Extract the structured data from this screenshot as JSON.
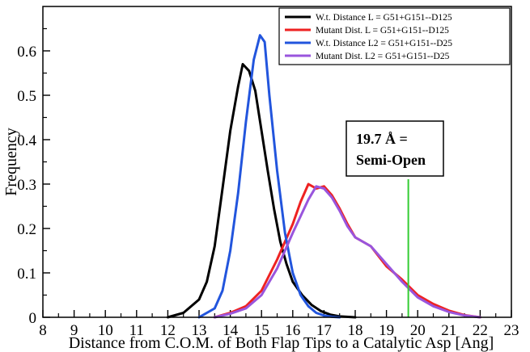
{
  "chart_data": {
    "type": "line",
    "title": "",
    "xlabel": "Distance from C.O.M. of Both Flap Tips to a Catalytic Asp [Ang]",
    "ylabel": "Frequency",
    "xlim": [
      8,
      23
    ],
    "ylim": [
      0,
      0.7
    ],
    "x_ticks": [
      8,
      9,
      10,
      11,
      12,
      13,
      14,
      15,
      16,
      17,
      18,
      19,
      20,
      21,
      22,
      23
    ],
    "y_ticks": [
      0,
      0.1,
      0.2,
      0.3,
      0.4,
      0.5,
      0.6
    ],
    "x_tick_labels": [
      "8",
      "9",
      "10",
      "11",
      "12",
      "13",
      "14",
      "15",
      "16",
      "17",
      "18",
      "19",
      "20",
      "21",
      "22",
      "23"
    ],
    "y_tick_labels": [
      "0",
      "0.1",
      "0.2",
      "0.3",
      "0.4",
      "0.5",
      "0.6"
    ],
    "grid": false,
    "legend_position": "top-right",
    "series": [
      {
        "name": "W.t. Distance L = G51+G151--D125",
        "color": "#000000",
        "x": [
          12.0,
          12.5,
          13.0,
          13.25,
          13.5,
          13.75,
          14.0,
          14.25,
          14.4,
          14.6,
          14.8,
          15.0,
          15.2,
          15.4,
          15.6,
          15.8,
          16.0,
          16.3,
          16.6,
          16.9,
          17.2,
          17.5,
          18.0
        ],
        "y": [
          0.0,
          0.01,
          0.04,
          0.08,
          0.16,
          0.29,
          0.42,
          0.52,
          0.57,
          0.555,
          0.51,
          0.42,
          0.33,
          0.245,
          0.17,
          0.12,
          0.08,
          0.05,
          0.028,
          0.014,
          0.006,
          0.002,
          0.0
        ]
      },
      {
        "name": "Mutant Dist. L = G51+G151--D125",
        "color": "#ee2222",
        "x": [
          13.5,
          14.0,
          14.5,
          15.0,
          15.5,
          16.0,
          16.25,
          16.5,
          16.75,
          17.0,
          17.25,
          17.5,
          17.75,
          18.0,
          18.5,
          19.0,
          19.5,
          20.0,
          20.5,
          21.0,
          21.5,
          22.0
        ],
        "y": [
          0.0,
          0.01,
          0.025,
          0.06,
          0.13,
          0.21,
          0.26,
          0.3,
          0.29,
          0.295,
          0.275,
          0.245,
          0.21,
          0.18,
          0.16,
          0.115,
          0.085,
          0.05,
          0.03,
          0.015,
          0.005,
          0.0
        ]
      },
      {
        "name": "W.t. Distance L2 = G51+G151--D25",
        "color": "#2255dd",
        "x": [
          13.0,
          13.5,
          13.75,
          14.0,
          14.25,
          14.5,
          14.75,
          14.95,
          15.1,
          15.25,
          15.5,
          15.75,
          16.0,
          16.25,
          16.5,
          16.75,
          17.0,
          17.25,
          17.5
        ],
        "y": [
          0.0,
          0.02,
          0.06,
          0.15,
          0.28,
          0.44,
          0.58,
          0.635,
          0.62,
          0.5,
          0.33,
          0.19,
          0.1,
          0.05,
          0.025,
          0.01,
          0.004,
          0.001,
          0.0
        ]
      },
      {
        "name": "Mutant Dist. L2 = G51+G151--D25",
        "color": "#9955dd",
        "x": [
          13.5,
          14.0,
          14.5,
          15.0,
          15.5,
          16.0,
          16.5,
          16.75,
          17.0,
          17.25,
          17.5,
          17.75,
          18.0,
          18.5,
          19.0,
          19.5,
          20.0,
          20.5,
          21.0,
          21.5,
          22.0
        ],
        "y": [
          0.0,
          0.008,
          0.02,
          0.05,
          0.11,
          0.19,
          0.265,
          0.295,
          0.29,
          0.27,
          0.24,
          0.205,
          0.18,
          0.16,
          0.12,
          0.08,
          0.045,
          0.025,
          0.012,
          0.004,
          0.0
        ]
      }
    ],
    "vline": {
      "x": 19.7,
      "color": "#33cc33"
    },
    "annotation": {
      "line1": "19.7 Å =",
      "line2": "Semi-Open"
    }
  }
}
